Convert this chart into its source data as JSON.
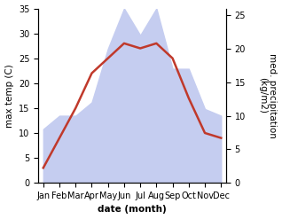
{
  "months": [
    "Jan",
    "Feb",
    "Mar",
    "Apr",
    "May",
    "Jun",
    "Jul",
    "Aug",
    "Sep",
    "Oct",
    "Nov",
    "Dec"
  ],
  "temperature": [
    3,
    9,
    15,
    22,
    25,
    28,
    27,
    28,
    25,
    17,
    10,
    9
  ],
  "precipitation": [
    8,
    10,
    10,
    12,
    20,
    26,
    22,
    26,
    17,
    17,
    11,
    10
  ],
  "temp_color": "#c0392b",
  "precip_color_fill": "#c5cdf0",
  "ylabel_left": "max temp (C)",
  "ylabel_right": "med. precipitation\n(kg/m2)",
  "xlabel": "date (month)",
  "ylim_left": [
    0,
    35
  ],
  "ylim_right": [
    0,
    26
  ],
  "right_ticks": [
    0,
    5,
    10,
    15,
    20,
    25
  ],
  "left_ticks": [
    0,
    5,
    10,
    15,
    20,
    25,
    30,
    35
  ],
  "label_fontsize": 7.5,
  "tick_fontsize": 7
}
